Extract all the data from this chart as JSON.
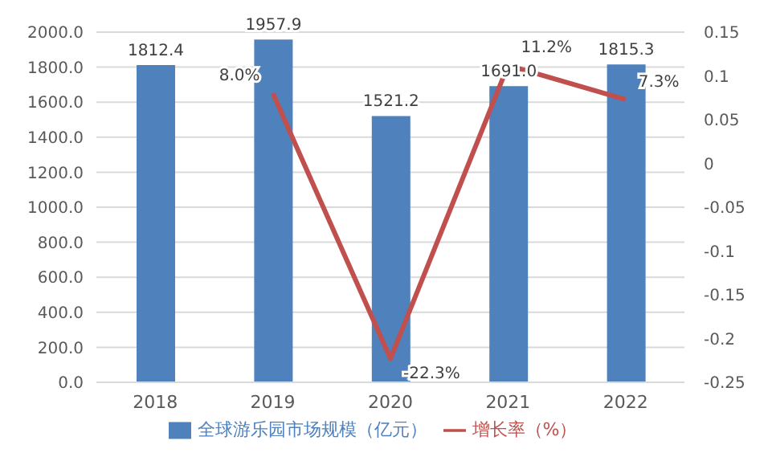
{
  "chart_data": {
    "type": "bar",
    "categories": [
      "2018",
      "2019",
      "2020",
      "2021",
      "2022"
    ],
    "series": [
      {
        "name": "全球游乐园市场规模（亿元）",
        "color": "#4f81bd",
        "values": [
          1812.4,
          1957.9,
          1521.2,
          1691.0,
          1815.3
        ],
        "value_labels": [
          "1812.4",
          "1957.9",
          "1521.2",
          "1691.0",
          "1815.3"
        ]
      },
      {
        "name": "增长率（%）",
        "type": "line",
        "axis": "y2",
        "color": "#c0504d",
        "values": [
          null,
          0.08,
          -0.223,
          0.112,
          0.073
        ],
        "value_labels": [
          null,
          "8.0%",
          "-22.3%",
          "11.2%",
          "7.3%"
        ]
      }
    ],
    "ylim": [
      0,
      2000
    ],
    "yticks": [
      {
        "value": 0,
        "label": "0.0"
      },
      {
        "value": 200,
        "label": "200.0"
      },
      {
        "value": 400,
        "label": "400.0"
      },
      {
        "value": 600,
        "label": "600.0"
      },
      {
        "value": 800,
        "label": "800.0"
      },
      {
        "value": 1000,
        "label": "1000.0"
      },
      {
        "value": 1200,
        "label": "1200.0"
      },
      {
        "value": 1400,
        "label": "1400.0"
      },
      {
        "value": 1600,
        "label": "1600.0"
      },
      {
        "value": 1800,
        "label": "1800.0"
      },
      {
        "value": 2000,
        "label": "2000.0"
      }
    ],
    "y2lim": [
      -0.25,
      0.15
    ],
    "y2ticks": [
      -0.25,
      -0.2,
      -0.15,
      -0.1,
      -0.05,
      0,
      0.05,
      0.1,
      0.15
    ],
    "grid": "y",
    "legend": "bottom",
    "marker": "none",
    "line_style": "solid"
  }
}
